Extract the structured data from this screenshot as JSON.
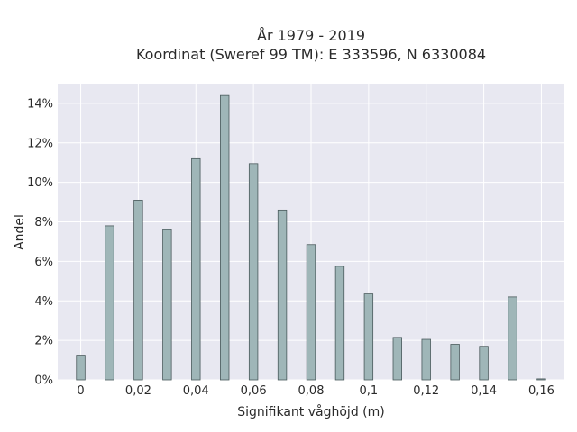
{
  "chart_data": {
    "type": "bar",
    "title_line1": "År 1979 - 2019",
    "title_line2": "Koordinat (Sweref 99 TM): E 333596, N 6330084",
    "xlabel": "Signifikant våghöjd (m)",
    "ylabel": "Andel",
    "x": [
      0,
      0.01,
      0.02,
      0.03,
      0.04,
      0.05,
      0.06,
      0.07,
      0.08,
      0.09,
      0.1,
      0.11,
      0.12,
      0.13,
      0.14,
      0.15,
      0.16
    ],
    "values": [
      1.25,
      7.8,
      9.1,
      7.6,
      11.2,
      14.4,
      10.95,
      8.6,
      6.85,
      5.75,
      4.35,
      2.15,
      2.05,
      1.8,
      1.7,
      4.2,
      0.05
    ],
    "xlim": [
      -0.008,
      0.168
    ],
    "ylim": [
      0,
      15
    ],
    "x_ticks": [
      0,
      0.02,
      0.04,
      0.06,
      0.08,
      0.1,
      0.12,
      0.14,
      0.16
    ],
    "x_tick_labels": [
      "0",
      "0,02",
      "0,04",
      "0,06",
      "0,08",
      "0,1",
      "0,12",
      "0,14",
      "0,16"
    ],
    "y_ticks": [
      0,
      2,
      4,
      6,
      8,
      10,
      12,
      14
    ],
    "y_tick_labels": [
      "0%",
      "2%",
      "4%",
      "6%",
      "8%",
      "10%",
      "12%",
      "14%"
    ],
    "bar_width": 0.003,
    "grid": true,
    "colors": {
      "bar_fill": "#9fb6b8",
      "bar_stroke": "#4a5a5c",
      "plot_bg": "#e8e8f1",
      "grid": "#ffffff"
    }
  }
}
